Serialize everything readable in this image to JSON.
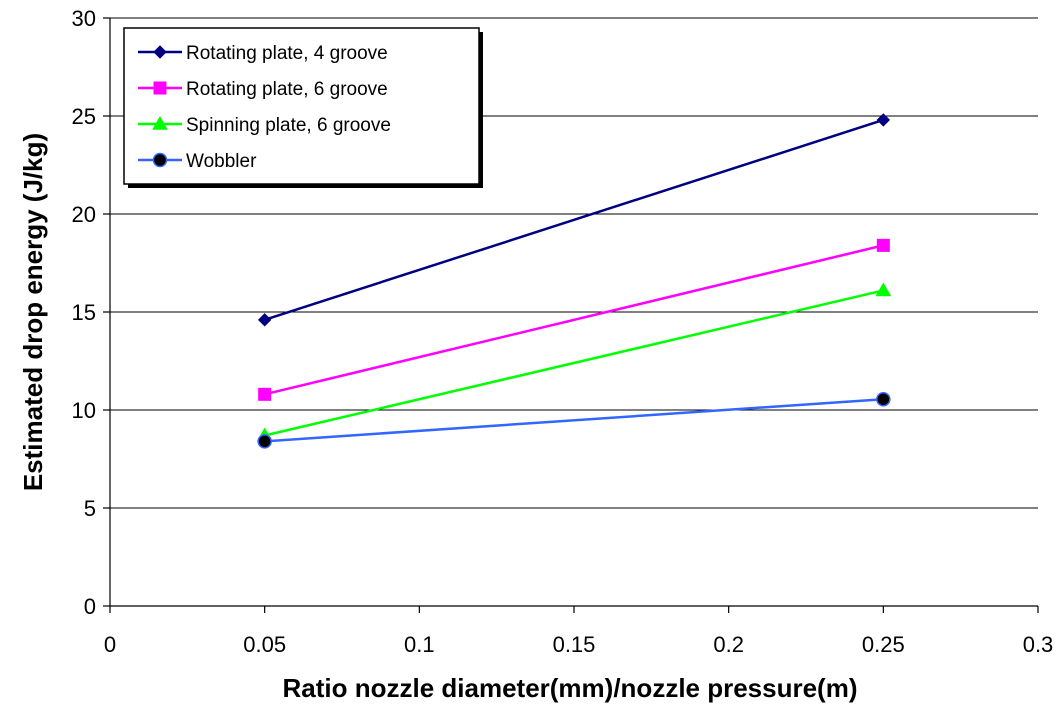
{
  "chart_data": {
    "type": "line",
    "title": "",
    "xlabel": "Ratio nozzle diameter(mm)/nozzle pressure(m)",
    "ylabel": "Estimated drop energy (J/kg)",
    "xlim": [
      0,
      0.3
    ],
    "ylim": [
      0,
      30
    ],
    "x_ticks": [
      0,
      0.05,
      0.1,
      0.15,
      0.2,
      0.25,
      0.3
    ],
    "x_tick_labels": [
      "0",
      "0.05",
      "0.1",
      "0.15",
      "0.2",
      "0.25",
      "0.3"
    ],
    "y_ticks": [
      0,
      5,
      10,
      15,
      20,
      25,
      30
    ],
    "y_tick_labels": [
      "0",
      "5",
      "10",
      "15",
      "20",
      "25",
      "30"
    ],
    "grid": "horizontal major gridlines",
    "legend_position": "top-left",
    "series": [
      {
        "name": "Rotating plate, 4 groove",
        "color": "#000080",
        "marker": "diamond",
        "x": [
          0.05,
          0.25
        ],
        "y": [
          14.6,
          24.8
        ]
      },
      {
        "name": "Rotating plate, 6 groove",
        "color": "#FF00FF",
        "marker": "square",
        "x": [
          0.05,
          0.25
        ],
        "y": [
          10.8,
          18.4
        ]
      },
      {
        "name": "Spinning plate, 6 groove",
        "color": "#00FF00",
        "marker": "triangle",
        "x": [
          0.05,
          0.25
        ],
        "y": [
          8.7,
          16.1
        ]
      },
      {
        "name": "Wobbler",
        "color": "#3366FF",
        "marker": "circle",
        "marker_fill": "#000000",
        "x": [
          0.05,
          0.25
        ],
        "y": [
          8.4,
          10.55
        ]
      }
    ]
  }
}
